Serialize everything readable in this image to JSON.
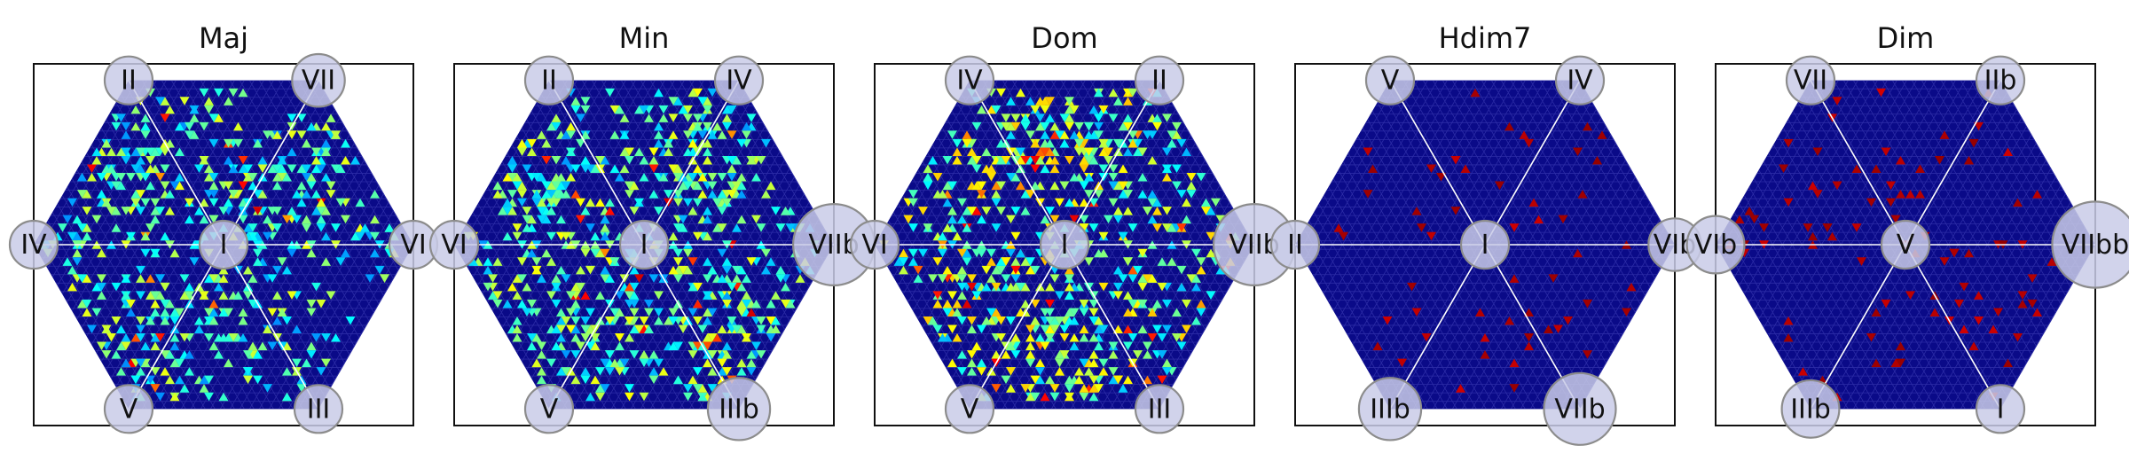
{
  "figure": {
    "colors": {
      "background": "#ffffff",
      "hexagon_fill": "#0a0a88",
      "mesh_line": "#3a3ab4",
      "axis_line": "#ffffff",
      "node_fill": "#c9cbe8",
      "node_stroke": "#8c8c8c",
      "frame": "#111111"
    },
    "colormap": "jet"
  },
  "chart_data": [
    {
      "type": "heatmap",
      "title": "Maj",
      "center": "I",
      "nodes": [
        {
          "label": "II",
          "size": 1.0
        },
        {
          "label": "VII",
          "size": 1.1
        },
        {
          "label": "VI",
          "size": 1.0
        },
        {
          "label": "III",
          "size": 1.0
        },
        {
          "label": "V",
          "size": 1.0
        },
        {
          "label": "IV",
          "size": 1.0
        }
      ],
      "density": 0.34,
      "intensity": 0.58,
      "hot_fraction": 0.05,
      "hot_regions": [
        [
          -0.55,
          0.45
        ],
        [
          0.25,
          0.25
        ],
        [
          -0.3,
          -0.55
        ]
      ]
    },
    {
      "type": "heatmap",
      "title": "Min",
      "center": "I",
      "nodes": [
        {
          "label": "II",
          "size": 1.0
        },
        {
          "label": "IV",
          "size": 1.0
        },
        {
          "label": "VIIb",
          "size": 1.7
        },
        {
          "label": "IIIb",
          "size": 1.3
        },
        {
          "label": "V",
          "size": 1.0
        },
        {
          "label": "VI",
          "size": 1.0
        }
      ],
      "density": 0.4,
      "intensity": 0.6,
      "hot_fraction": 0.05,
      "hot_regions": [
        [
          -0.45,
          0.3
        ],
        [
          0.25,
          0.5
        ],
        [
          -0.35,
          -0.3
        ],
        [
          0.35,
          -0.45
        ]
      ]
    },
    {
      "type": "heatmap",
      "title": "Dom",
      "center": "I",
      "nodes": [
        {
          "label": "IV",
          "size": 1.0
        },
        {
          "label": "II",
          "size": 1.0
        },
        {
          "label": "VIIb",
          "size": 1.7
        },
        {
          "label": "III",
          "size": 1.0
        },
        {
          "label": "V",
          "size": 1.0
        },
        {
          "label": "VI",
          "size": 1.0
        }
      ],
      "density": 0.42,
      "intensity": 0.66,
      "hot_fraction": 0.08,
      "hot_regions": [
        [
          0.0,
          0.6
        ],
        [
          -0.45,
          -0.3
        ],
        [
          0.05,
          -0.5
        ]
      ]
    },
    {
      "type": "heatmap",
      "title": "Hdim7",
      "center": "I",
      "nodes": [
        {
          "label": "V",
          "size": 1.0
        },
        {
          "label": "IV",
          "size": 1.0
        },
        {
          "label": "VIb",
          "size": 1.1
        },
        {
          "label": "VIIb",
          "size": 1.5
        },
        {
          "label": "IIIb",
          "size": 1.3
        },
        {
          "label": "II",
          "size": 1.0
        }
      ],
      "density": 0.035,
      "intensity": 0.95,
      "hot_fraction": 1.0,
      "hot_regions": [
        [
          0.45,
          0.65
        ],
        [
          0.4,
          -0.6
        ]
      ]
    },
    {
      "type": "heatmap",
      "title": "Dim",
      "center": "V",
      "nodes": [
        {
          "label": "VII",
          "size": 1.0
        },
        {
          "label": "IIb",
          "size": 1.0
        },
        {
          "label": "VIIbb",
          "size": 1.8
        },
        {
          "label": "I",
          "size": 1.0
        },
        {
          "label": "IIIb",
          "size": 1.2
        },
        {
          "label": "VIb",
          "size": 1.2
        }
      ],
      "density": 0.05,
      "intensity": 0.95,
      "hot_fraction": 1.0,
      "hot_regions": [
        [
          0.0,
          0.6
        ],
        [
          -0.6,
          0.2
        ],
        [
          0.55,
          -0.4
        ]
      ]
    }
  ]
}
